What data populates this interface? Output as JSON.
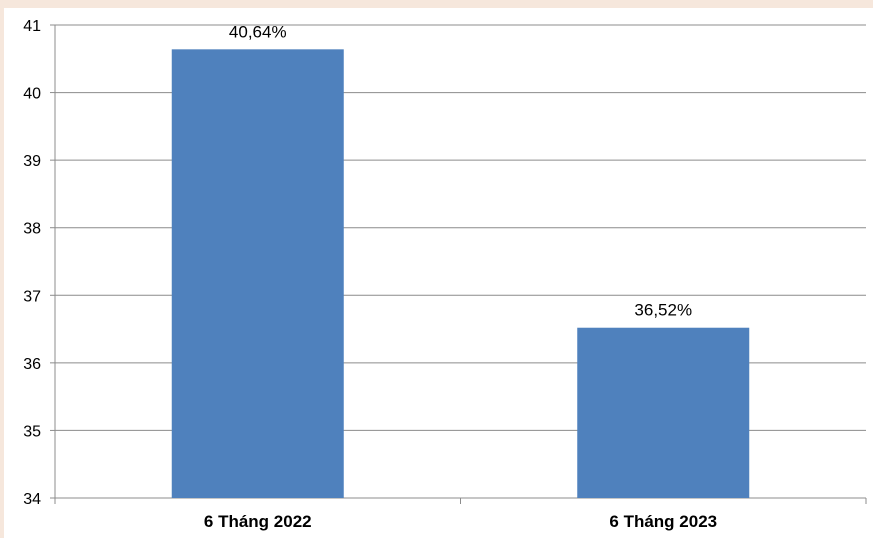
{
  "chart_data": {
    "type": "bar",
    "categories": [
      "6 Tháng 2022",
      "6 Tháng 2023"
    ],
    "values": [
      40.64,
      36.52
    ],
    "data_labels": [
      "40,64%",
      "36,52%"
    ],
    "ylim": [
      34,
      41
    ],
    "yticks": [
      "34",
      "35",
      "36",
      "37",
      "38",
      "39",
      "40",
      "41"
    ],
    "title": "",
    "xlabel": "",
    "ylabel": "",
    "grid": true,
    "legend": "none",
    "bar_color": "#4f81bd",
    "grid_color": "#8c8c8c",
    "axis_color": "#8c8c8c"
  }
}
